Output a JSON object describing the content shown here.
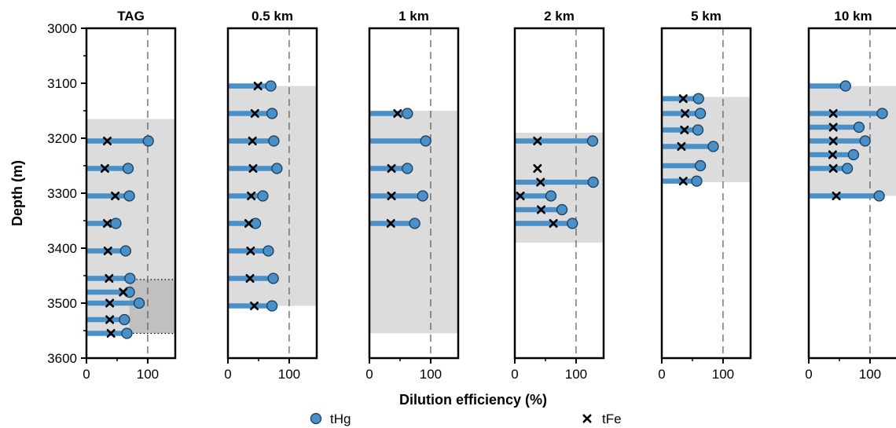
{
  "figure": {
    "xlabel": "Dilution efficiency (%)",
    "ylabel": "Depth (m)"
  },
  "legend": {
    "placement": "bottom",
    "items": [
      {
        "marker": "circle",
        "label": "tHg",
        "color": "#4a90c8"
      },
      {
        "marker": "cross",
        "label": "tFe",
        "color": "#000000"
      }
    ]
  },
  "colors": {
    "stem": "#4a90c8",
    "circle_fill": "#4a90c8",
    "circle_edge": "#1a3a5a",
    "cross": "#000000",
    "shade": "#dcdcdc",
    "shade_dark": "#c0c0c0",
    "reference_line": "#555555"
  },
  "chart_data": [
    {
      "type": "scatter",
      "title": "TAG",
      "xlim": [
        0,
        145
      ],
      "ylim": [
        3600,
        3000
      ],
      "y_ticks": [
        "3000",
        "3100",
        "3200",
        "3300",
        "3400",
        "3500",
        "3600"
      ],
      "x_ticks": [
        "0",
        "100"
      ],
      "reference_x": 100,
      "shaded_depth_range": [
        3165,
        3555
      ],
      "dark_shaded_depth_range": [
        3457,
        3555
      ],
      "points": [
        {
          "depth": 3205,
          "tHg": 101,
          "tFe": 34
        },
        {
          "depth": 3255,
          "tHg": 68,
          "tFe": 30
        },
        {
          "depth": 3305,
          "tHg": 70,
          "tFe": 47
        },
        {
          "depth": 3355,
          "tHg": 48,
          "tFe": 34
        },
        {
          "depth": 3405,
          "tHg": 64,
          "tFe": 35
        },
        {
          "depth": 3455,
          "tHg": 71,
          "tFe": 37
        },
        {
          "depth": 3480,
          "tHg": 70,
          "tFe": 60
        },
        {
          "depth": 3500,
          "tHg": 86,
          "tFe": 38
        },
        {
          "depth": 3530,
          "tHg": 62,
          "tFe": 38
        },
        {
          "depth": 3555,
          "tHg": 66,
          "tFe": 40
        }
      ]
    },
    {
      "type": "scatter",
      "title": "0.5 km",
      "xlim": [
        0,
        145
      ],
      "ylim": [
        3600,
        3000
      ],
      "x_ticks": [
        "0",
        "100"
      ],
      "reference_x": 100,
      "shaded_depth_range": [
        3105,
        3505
      ],
      "points": [
        {
          "depth": 3105,
          "tHg": 70,
          "tFe": 49
        },
        {
          "depth": 3155,
          "tHg": 72,
          "tFe": 44
        },
        {
          "depth": 3205,
          "tHg": 75,
          "tFe": 40
        },
        {
          "depth": 3255,
          "tHg": 80,
          "tFe": 41
        },
        {
          "depth": 3305,
          "tHg": 57,
          "tFe": 38
        },
        {
          "depth": 3355,
          "tHg": 45,
          "tFe": 34
        },
        {
          "depth": 3405,
          "tHg": 66,
          "tFe": 37
        },
        {
          "depth": 3455,
          "tHg": 74,
          "tFe": 36
        },
        {
          "depth": 3505,
          "tHg": 72,
          "tFe": 43
        }
      ]
    },
    {
      "type": "scatter",
      "title": "1 km",
      "xlim": [
        0,
        145
      ],
      "ylim": [
        3600,
        3000
      ],
      "x_ticks": [
        "0",
        "100"
      ],
      "reference_x": 100,
      "shaded_depth_range": [
        3150,
        3555
      ],
      "points": [
        {
          "depth": 3155,
          "tHg": 62,
          "tFe": 46
        },
        {
          "depth": 3205,
          "tHg": 92,
          "tFe": null
        },
        {
          "depth": 3255,
          "tHg": 62,
          "tFe": 36
        },
        {
          "depth": 3305,
          "tHg": 87,
          "tFe": 36
        },
        {
          "depth": 3355,
          "tHg": 74,
          "tFe": 35
        }
      ]
    },
    {
      "type": "scatter",
      "title": "2 km",
      "xlim": [
        0,
        145
      ],
      "ylim": [
        3600,
        3000
      ],
      "x_ticks": [
        "0",
        "100"
      ],
      "reference_x": 100,
      "shaded_depth_range": [
        3190,
        3390
      ],
      "points": [
        {
          "depth": 3205,
          "tHg": 127,
          "tFe": 37
        },
        {
          "depth": 3255,
          "tHg": null,
          "tFe": 37
        },
        {
          "depth": 3280,
          "tHg": 128,
          "tFe": 42
        },
        {
          "depth": 3305,
          "tHg": 59,
          "tFe": 9
        },
        {
          "depth": 3330,
          "tHg": 77,
          "tFe": 43
        },
        {
          "depth": 3355,
          "tHg": 94,
          "tFe": 63
        }
      ]
    },
    {
      "type": "scatter",
      "title": "5 km",
      "xlim": [
        0,
        145
      ],
      "ylim": [
        3600,
        3000
      ],
      "x_ticks": [
        "0",
        "100"
      ],
      "reference_x": 100,
      "shaded_depth_range": [
        3125,
        3280
      ],
      "points": [
        {
          "depth": 3128,
          "tHg": 60,
          "tFe": 35
        },
        {
          "depth": 3155,
          "tHg": 63,
          "tFe": 38
        },
        {
          "depth": 3185,
          "tHg": 59,
          "tFe": 37
        },
        {
          "depth": 3215,
          "tHg": 84,
          "tFe": 32
        },
        {
          "depth": 3250,
          "tHg": 63,
          "tFe": null
        },
        {
          "depth": 3278,
          "tHg": 57,
          "tFe": 35
        }
      ]
    },
    {
      "type": "scatter",
      "title": "10 km",
      "xlim": [
        0,
        145
      ],
      "ylim": [
        3600,
        3000
      ],
      "x_ticks": [
        "0",
        "100"
      ],
      "reference_x": 100,
      "shaded_depth_range": [
        3105,
        3305
      ],
      "points": [
        {
          "depth": 3105,
          "tHg": 60,
          "tFe": null
        },
        {
          "depth": 3155,
          "tHg": 120,
          "tFe": 40
        },
        {
          "depth": 3180,
          "tHg": 82,
          "tFe": 40
        },
        {
          "depth": 3205,
          "tHg": 92,
          "tFe": 40
        },
        {
          "depth": 3230,
          "tHg": 73,
          "tFe": 39
        },
        {
          "depth": 3255,
          "tHg": 63,
          "tFe": 40
        },
        {
          "depth": 3305,
          "tHg": 115,
          "tFe": 45
        }
      ]
    }
  ]
}
